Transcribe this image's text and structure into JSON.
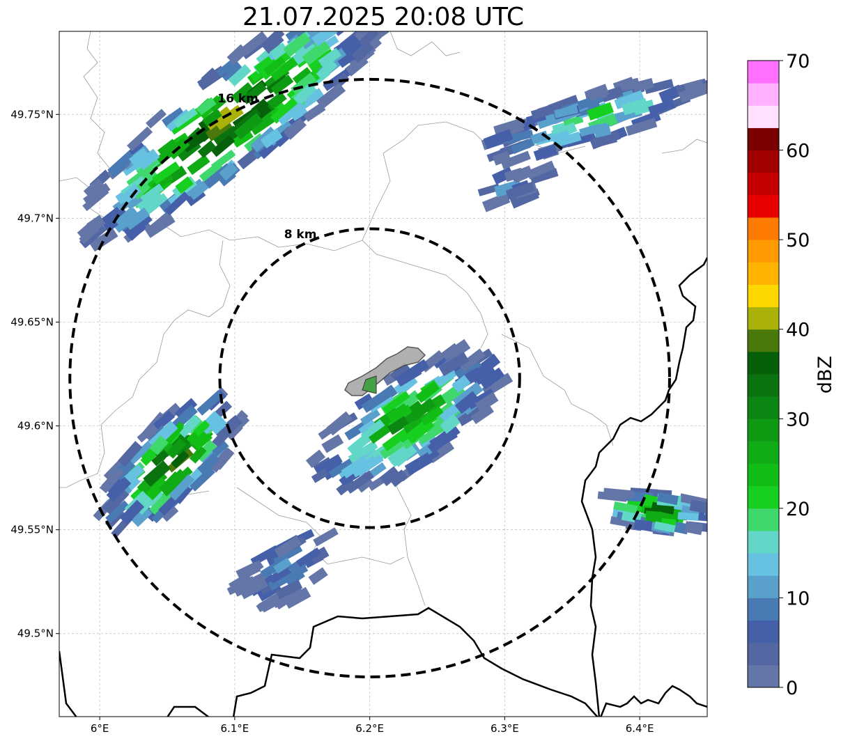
{
  "title": "21.07.2025 20:08 UTC",
  "map": {
    "lon_ticks": [
      {
        "lon": 6.0,
        "label": "6°E"
      },
      {
        "lon": 6.1,
        "label": "6.1°E"
      },
      {
        "lon": 6.2,
        "label": "6.2°E"
      },
      {
        "lon": 6.3,
        "label": "6.3°E"
      },
      {
        "lon": 6.4,
        "label": "6.4°E"
      }
    ],
    "lat_ticks": [
      {
        "lat": 49.75,
        "label": "49.75°N"
      },
      {
        "lat": 49.7,
        "label": "49.7°N"
      },
      {
        "lat": 49.65,
        "label": "49.65°N"
      },
      {
        "lat": 49.6,
        "label": "49.6°N"
      },
      {
        "lat": 49.55,
        "label": "49.55°N"
      },
      {
        "lat": 49.5,
        "label": "49.5°N"
      }
    ],
    "extent": {
      "lon_min": 5.97,
      "lon_max": 6.45,
      "lat_min": 49.46,
      "lat_max": 49.79
    },
    "radar_center": {
      "lon": 6.2,
      "lat": 49.623
    },
    "range_rings": [
      {
        "radius_km": 8,
        "label": "8 km"
      },
      {
        "radius_km": 16,
        "label": "16 km"
      }
    ],
    "gridlines": true
  },
  "colorbar": {
    "label": "dBZ",
    "min": 0,
    "max": 70,
    "tick_labels": [
      "0",
      "10",
      "20",
      "30",
      "40",
      "50",
      "60",
      "70"
    ],
    "colors": [
      "#6475a8",
      "#5367a2",
      "#4560a8",
      "#4a7ab3",
      "#5aa0cc",
      "#67c1e0",
      "#63d7c7",
      "#3fd86c",
      "#17cf1f",
      "#12be16",
      "#11ab16",
      "#0f9a14",
      "#0c8612",
      "#0a7310",
      "#06600a",
      "#48790a",
      "#aab20a",
      "#fed600",
      "#ffb200",
      "#ff9a00",
      "#ff7a00",
      "#e80000",
      "#c40000",
      "#a00000",
      "#7a0000",
      "#ffe0ff",
      "#ffb0ff",
      "#ff70ff",
      "#f03cf0"
    ]
  },
  "echoes": [
    {
      "name": "northwest-band",
      "lon": 6.06,
      "lat": 49.72,
      "peak_dbz": 45
    },
    {
      "name": "west-cell",
      "lon": 6.06,
      "lat": 49.585,
      "peak_dbz": 42
    },
    {
      "name": "central-cell",
      "lon": 6.22,
      "lat": 49.605,
      "peak_dbz": 32
    },
    {
      "name": "east-cell",
      "lon": 6.42,
      "lat": 49.56,
      "peak_dbz": 40
    },
    {
      "name": "northeast-echoes",
      "lon": 6.35,
      "lat": 49.75,
      "peak_dbz": 22
    },
    {
      "name": "south-echoes",
      "lon": 6.12,
      "lat": 49.525,
      "peak_dbz": 8
    }
  ]
}
